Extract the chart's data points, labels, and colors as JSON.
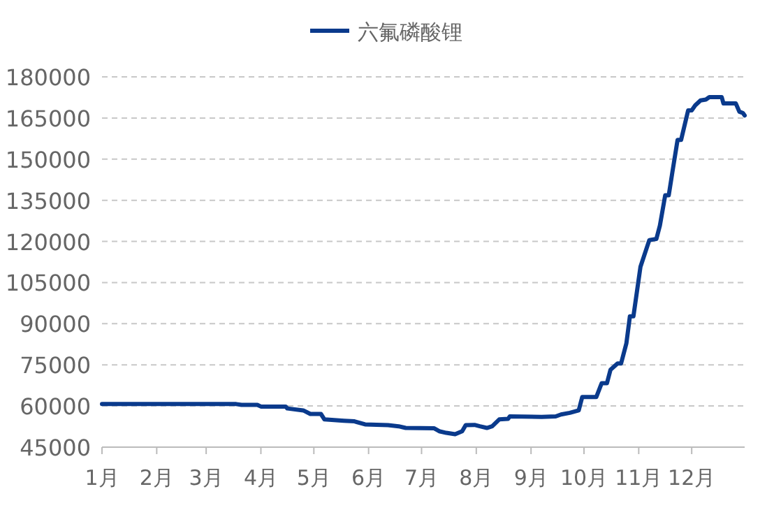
{
  "chart_data": {
    "type": "line",
    "x": [
      "--01-01",
      "--03-18",
      "--03-21",
      "--03-30",
      "--04-01",
      "--04-15",
      "--04-16",
      "--04-25",
      "--04-29",
      "--05-05",
      "--05-07",
      "--05-18",
      "--05-24",
      "--05-30",
      "--06-12",
      "--06-18",
      "--06-22",
      "--07-08",
      "--07-11",
      "--07-15",
      "--07-20",
      "--07-24",
      "--07-26",
      "--07-31",
      "--08-03",
      "--08-07",
      "--08-10",
      "--08-14",
      "--08-19",
      "--08-20",
      "--09-07",
      "--09-15",
      "--09-18",
      "--09-23",
      "--09-28",
      "--09-30",
      "--10-08",
      "--10-11",
      "--10-14",
      "--10-16",
      "--10-20",
      "--10-22",
      "--10-25",
      "--10-27",
      "--10-29",
      "--11-02",
      "--11-07",
      "--11-11",
      "--11-13",
      "--11-16",
      "--11-18",
      "--11-20",
      "--11-23",
      "--11-25",
      "--11-29",
      "--12-01",
      "--12-03",
      "--12-06",
      "--12-09",
      "--12-11",
      "--12-18",
      "--12-19",
      "--12-26",
      "--12-28",
      "--12-30",
      "--12-31"
    ],
    "series": [
      {
        "name": "六氟磷酸锂",
        "color": "#0a3a8c",
        "values": [
          60700,
          60700,
          60400,
          60400,
          59800,
          59800,
          59100,
          58400,
          57100,
          57100,
          55100,
          54600,
          54400,
          53300,
          53000,
          52600,
          52000,
          51900,
          50800,
          50200,
          49700,
          50800,
          53000,
          53100,
          52600,
          52000,
          52600,
          55100,
          55300,
          56200,
          56000,
          56200,
          56900,
          57500,
          58400,
          63300,
          63300,
          68300,
          68300,
          73200,
          75500,
          75500,
          82800,
          92700,
          92700,
          110800,
          120500,
          120900,
          125800,
          136800,
          136800,
          145000,
          157000,
          157000,
          167800,
          167800,
          169600,
          171400,
          171700,
          172600,
          172600,
          170300,
          170300,
          167300,
          166800,
          165900
        ]
      }
    ],
    "xlim": [
      "--01-01",
      "--12-31"
    ],
    "xticks": [
      {
        "value": "--01-01",
        "label": "1月"
      },
      {
        "value": "--02-01",
        "label": "2月"
      },
      {
        "value": "--03-01",
        "label": "3月"
      },
      {
        "value": "--04-01",
        "label": "4月"
      },
      {
        "value": "--05-01",
        "label": "5月"
      },
      {
        "value": "--06-01",
        "label": "6月"
      },
      {
        "value": "--07-01",
        "label": "7月"
      },
      {
        "value": "--08-01",
        "label": "8月"
      },
      {
        "value": "--09-01",
        "label": "9月"
      },
      {
        "value": "--10-01",
        "label": "10月"
      },
      {
        "value": "--11-01",
        "label": "11月"
      },
      {
        "value": "--12-01",
        "label": "12月"
      }
    ],
    "ylim": [
      45000,
      180000
    ],
    "yticks": [
      45000,
      60000,
      75000,
      90000,
      105000,
      120000,
      135000,
      150000,
      165000,
      180000
    ],
    "grid": "y",
    "legend": "top"
  }
}
